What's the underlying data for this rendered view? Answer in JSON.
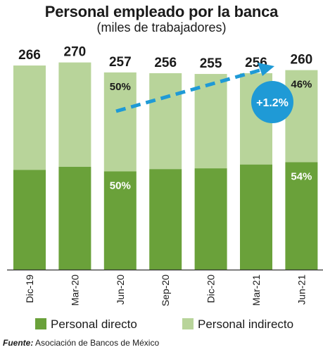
{
  "header": {
    "title": "Personal empleado por la banca",
    "subtitle": "(miles de trabajadores)"
  },
  "chart_data": {
    "type": "bar",
    "stacked": true,
    "title": "Personal empleado por la banca",
    "subtitle": "(miles de trabajadores)",
    "categories": [
      "Dic-19",
      "Mar-20",
      "Jun-20",
      "Sep-20",
      "Dic-20",
      "Mar-21",
      "Jun-21"
    ],
    "totals": [
      266,
      270,
      257,
      256,
      255,
      256,
      260
    ],
    "series": [
      {
        "name": "Personal directo",
        "values": [
          130,
          134,
          128,
          131,
          132,
          137,
          140
        ],
        "color": "#6aa13a"
      },
      {
        "name": "Personal indirecto",
        "values": [
          136,
          136,
          129,
          125,
          123,
          119,
          120
        ],
        "color": "#b8d49a"
      }
    ],
    "share_labels": [
      {
        "category": "Jun-20",
        "directo": "50%",
        "indirecto": "50%"
      },
      {
        "category": "Jun-21",
        "directo": "54%",
        "indirecto": "46%"
      }
    ],
    "annotation": {
      "text": "+1.2%",
      "color": "#1f9ad6"
    },
    "ylim": [
      0,
      270
    ],
    "grid": false,
    "legend": "bottom",
    "xlabel": "",
    "ylabel": ""
  },
  "legend": {
    "directo": "Personal directo",
    "indirecto": "Personal indirecto"
  },
  "source": {
    "label": "Fuente:",
    "text": " Asociación de Bancos de México"
  }
}
